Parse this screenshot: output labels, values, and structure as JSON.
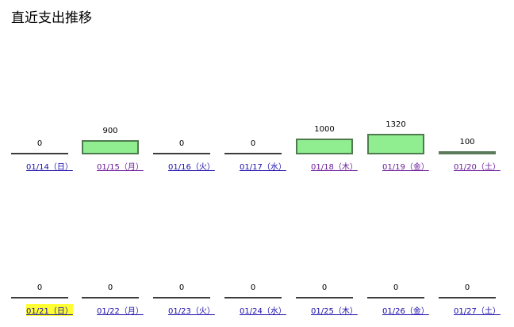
{
  "page": {
    "title": "直近支出推移"
  },
  "chart_data": {
    "type": "bar",
    "title": "",
    "weeks": [
      {
        "categories": [
          "01/14（日）",
          "01/15（月）",
          "01/16（火）",
          "01/17（水）",
          "01/18（木）",
          "01/19（金）",
          "01/20（土）"
        ],
        "values": [
          0,
          900,
          0,
          0,
          1000,
          1320,
          100
        ],
        "label_state": [
          "link",
          "visited",
          "link",
          "link",
          "visited",
          "visited",
          "visited"
        ]
      },
      {
        "categories": [
          "01/21（日）",
          "01/22（月）",
          "01/23（火）",
          "01/24（水）",
          "01/25（木）",
          "01/26（金）",
          "01/27（土）"
        ],
        "values": [
          0,
          0,
          0,
          0,
          0,
          0,
          0
        ],
        "label_state": [
          "today",
          "link",
          "link",
          "link",
          "link",
          "link",
          "link"
        ]
      }
    ],
    "bar_color": "#90ee90",
    "border_color": "#4f7a4f",
    "zero_line_color": "#3c3c3c",
    "highlight_color": "#ffff33",
    "link_color": "#1a0dab",
    "visited_color": "#6a1b9a"
  }
}
